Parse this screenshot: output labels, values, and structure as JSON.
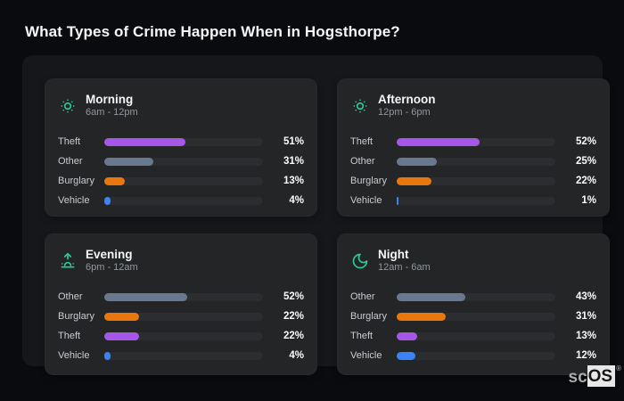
{
  "title": "What Types of Crime Happen When in Hogsthorpe?",
  "brand": {
    "prefix": "sc",
    "boxed": "OS",
    "registered_mark": "®"
  },
  "colors": {
    "accent_icon": "#2ec993",
    "track": "#2b2d31",
    "theft": "#a558e8",
    "other": "#68798f",
    "burglary": "#e8770e",
    "vehicle": "#3b82f6"
  },
  "chart_data": [
    {
      "type": "bar",
      "orientation": "horizontal",
      "title": "Morning",
      "subtitle": "6am - 12pm",
      "icon": "sun-icon",
      "xlim": [
        0,
        100
      ],
      "categories": [
        "Theft",
        "Other",
        "Burglary",
        "Vehicle"
      ],
      "values": [
        51,
        31,
        13,
        4
      ],
      "value_labels": [
        "51%",
        "31%",
        "13%",
        "4%"
      ]
    },
    {
      "type": "bar",
      "orientation": "horizontal",
      "title": "Afternoon",
      "subtitle": "12pm - 6pm",
      "icon": "sun-icon",
      "xlim": [
        0,
        100
      ],
      "categories": [
        "Theft",
        "Other",
        "Burglary",
        "Vehicle"
      ],
      "values": [
        52,
        25,
        22,
        1
      ],
      "value_labels": [
        "52%",
        "25%",
        "22%",
        "1%"
      ]
    },
    {
      "type": "bar",
      "orientation": "horizontal",
      "title": "Evening",
      "subtitle": "6pm - 12am",
      "icon": "sunrise-icon",
      "xlim": [
        0,
        100
      ],
      "categories": [
        "Other",
        "Burglary",
        "Theft",
        "Vehicle"
      ],
      "values": [
        52,
        22,
        22,
        4
      ],
      "value_labels": [
        "52%",
        "22%",
        "22%",
        "4%"
      ]
    },
    {
      "type": "bar",
      "orientation": "horizontal",
      "title": "Night",
      "subtitle": "12am - 6am",
      "icon": "moon-icon",
      "xlim": [
        0,
        100
      ],
      "categories": [
        "Other",
        "Burglary",
        "Theft",
        "Vehicle"
      ],
      "values": [
        43,
        31,
        13,
        12
      ],
      "value_labels": [
        "43%",
        "31%",
        "13%",
        "12%"
      ]
    }
  ]
}
